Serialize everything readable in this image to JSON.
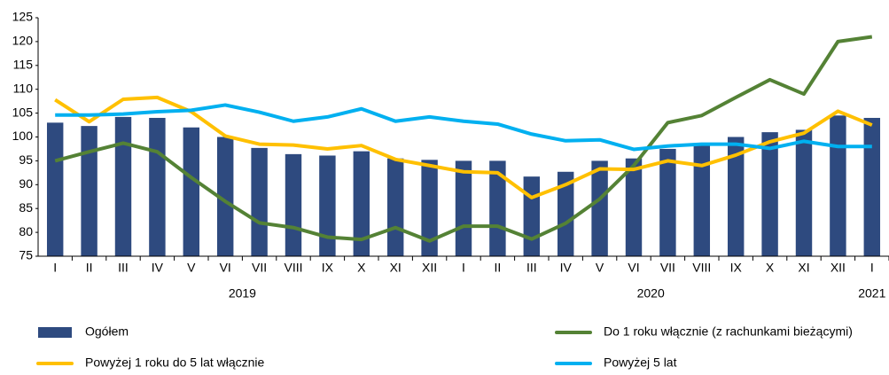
{
  "chart_data": {
    "type": "bar_line",
    "categories": [
      "I",
      "II",
      "III",
      "IV",
      "V",
      "VI",
      "VII",
      "VIII",
      "IX",
      "X",
      "XI",
      "XII",
      "I",
      "II",
      "III",
      "IV",
      "V",
      "VI",
      "VII",
      "VIII",
      "IX",
      "X",
      "XI",
      "XII",
      "I"
    ],
    "x_groups": [
      {
        "label": "2019",
        "count": 12
      },
      {
        "label": "2020",
        "count": 12
      },
      {
        "label": "2021",
        "count": 1
      }
    ],
    "series": [
      {
        "name": "Ogółem",
        "kind": "bar",
        "color": "#2e4a7f",
        "values": [
          103,
          102.3,
          104.2,
          104,
          102,
          100,
          97.7,
          96.4,
          96.1,
          97,
          95.5,
          95.2,
          95,
          95,
          91.7,
          92.7,
          95,
          95.5,
          97.5,
          98.5,
          100,
          101,
          101.5,
          104.5,
          104
        ]
      },
      {
        "name": "Do 1 roku włącznie (z rachunkami bieżącymi)",
        "kind": "line",
        "color": "#548235",
        "values": [
          95,
          96.9,
          98.7,
          96.9,
          91.5,
          86.5,
          82,
          81,
          79,
          78.5,
          81,
          78.2,
          81.3,
          81.3,
          78.6,
          81.9,
          87,
          94,
          103,
          104.5,
          108.3,
          112,
          109,
          120,
          121
        ]
      },
      {
        "name": "Powyżej 1 roku do 5 lat włącznie",
        "kind": "line",
        "color": "#ffc000",
        "values": [
          107.8,
          103.2,
          107.9,
          108.3,
          105.3,
          100.2,
          98.5,
          98.3,
          97.5,
          98.2,
          95.3,
          94,
          92.7,
          92.5,
          87.3,
          90,
          93.3,
          93.2,
          95,
          94,
          96.2,
          99,
          100.8,
          105.4,
          102.5
        ]
      },
      {
        "name": "Powyżej 5 lat",
        "kind": "line",
        "color": "#00b0f0",
        "values": [
          104.6,
          104.6,
          104.8,
          105.3,
          105.6,
          106.7,
          105.2,
          103.3,
          104.2,
          105.9,
          103.3,
          104.2,
          103.3,
          102.7,
          100.6,
          99.2,
          99.4,
          97.4,
          98.1,
          98.5,
          98.5,
          97.6,
          99.1,
          98,
          98
        ]
      }
    ],
    "ylim": [
      75,
      125
    ],
    "yticks": [
      75,
      80,
      85,
      90,
      95,
      100,
      105,
      110,
      115,
      120,
      125
    ],
    "grid": false,
    "legend": "bottom"
  }
}
